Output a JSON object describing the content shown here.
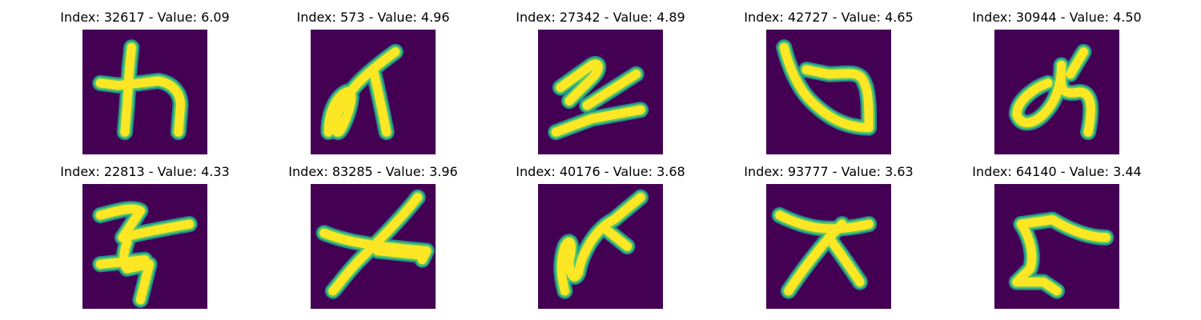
{
  "colors": {
    "background": "#440154",
    "stroke_outer": "#21918c",
    "stroke_mid": "#5ec962",
    "stroke_core": "#fde725"
  },
  "panels": [
    {
      "caption": "Index: 32617 - Value: 6.09",
      "glyph": "kana-wa-like"
    },
    {
      "caption": "Index: 573 - Value: 4.96",
      "glyph": "kana-loop-stroke"
    },
    {
      "caption": "Index: 27342 - Value: 4.89",
      "glyph": "kana-zigzag"
    },
    {
      "caption": "Index: 42727 - Value: 4.65",
      "glyph": "kana-hook-loop"
    },
    {
      "caption": "Index: 30944 - Value: 4.50",
      "glyph": "kana-me-like"
    },
    {
      "caption": "Index: 22813 - Value: 4.33",
      "glyph": "kana-su-like"
    },
    {
      "caption": "Index: 83285 - Value: 3.96",
      "glyph": "kana-cross-stroke"
    },
    {
      "caption": "Index: 40176 - Value: 3.68",
      "glyph": "kana-loop-branch"
    },
    {
      "caption": "Index: 93777 - Value: 3.63",
      "glyph": "kana-star-cross"
    },
    {
      "caption": "Index: 64140 - Value: 3.44",
      "glyph": "kana-angle-stroke"
    }
  ]
}
